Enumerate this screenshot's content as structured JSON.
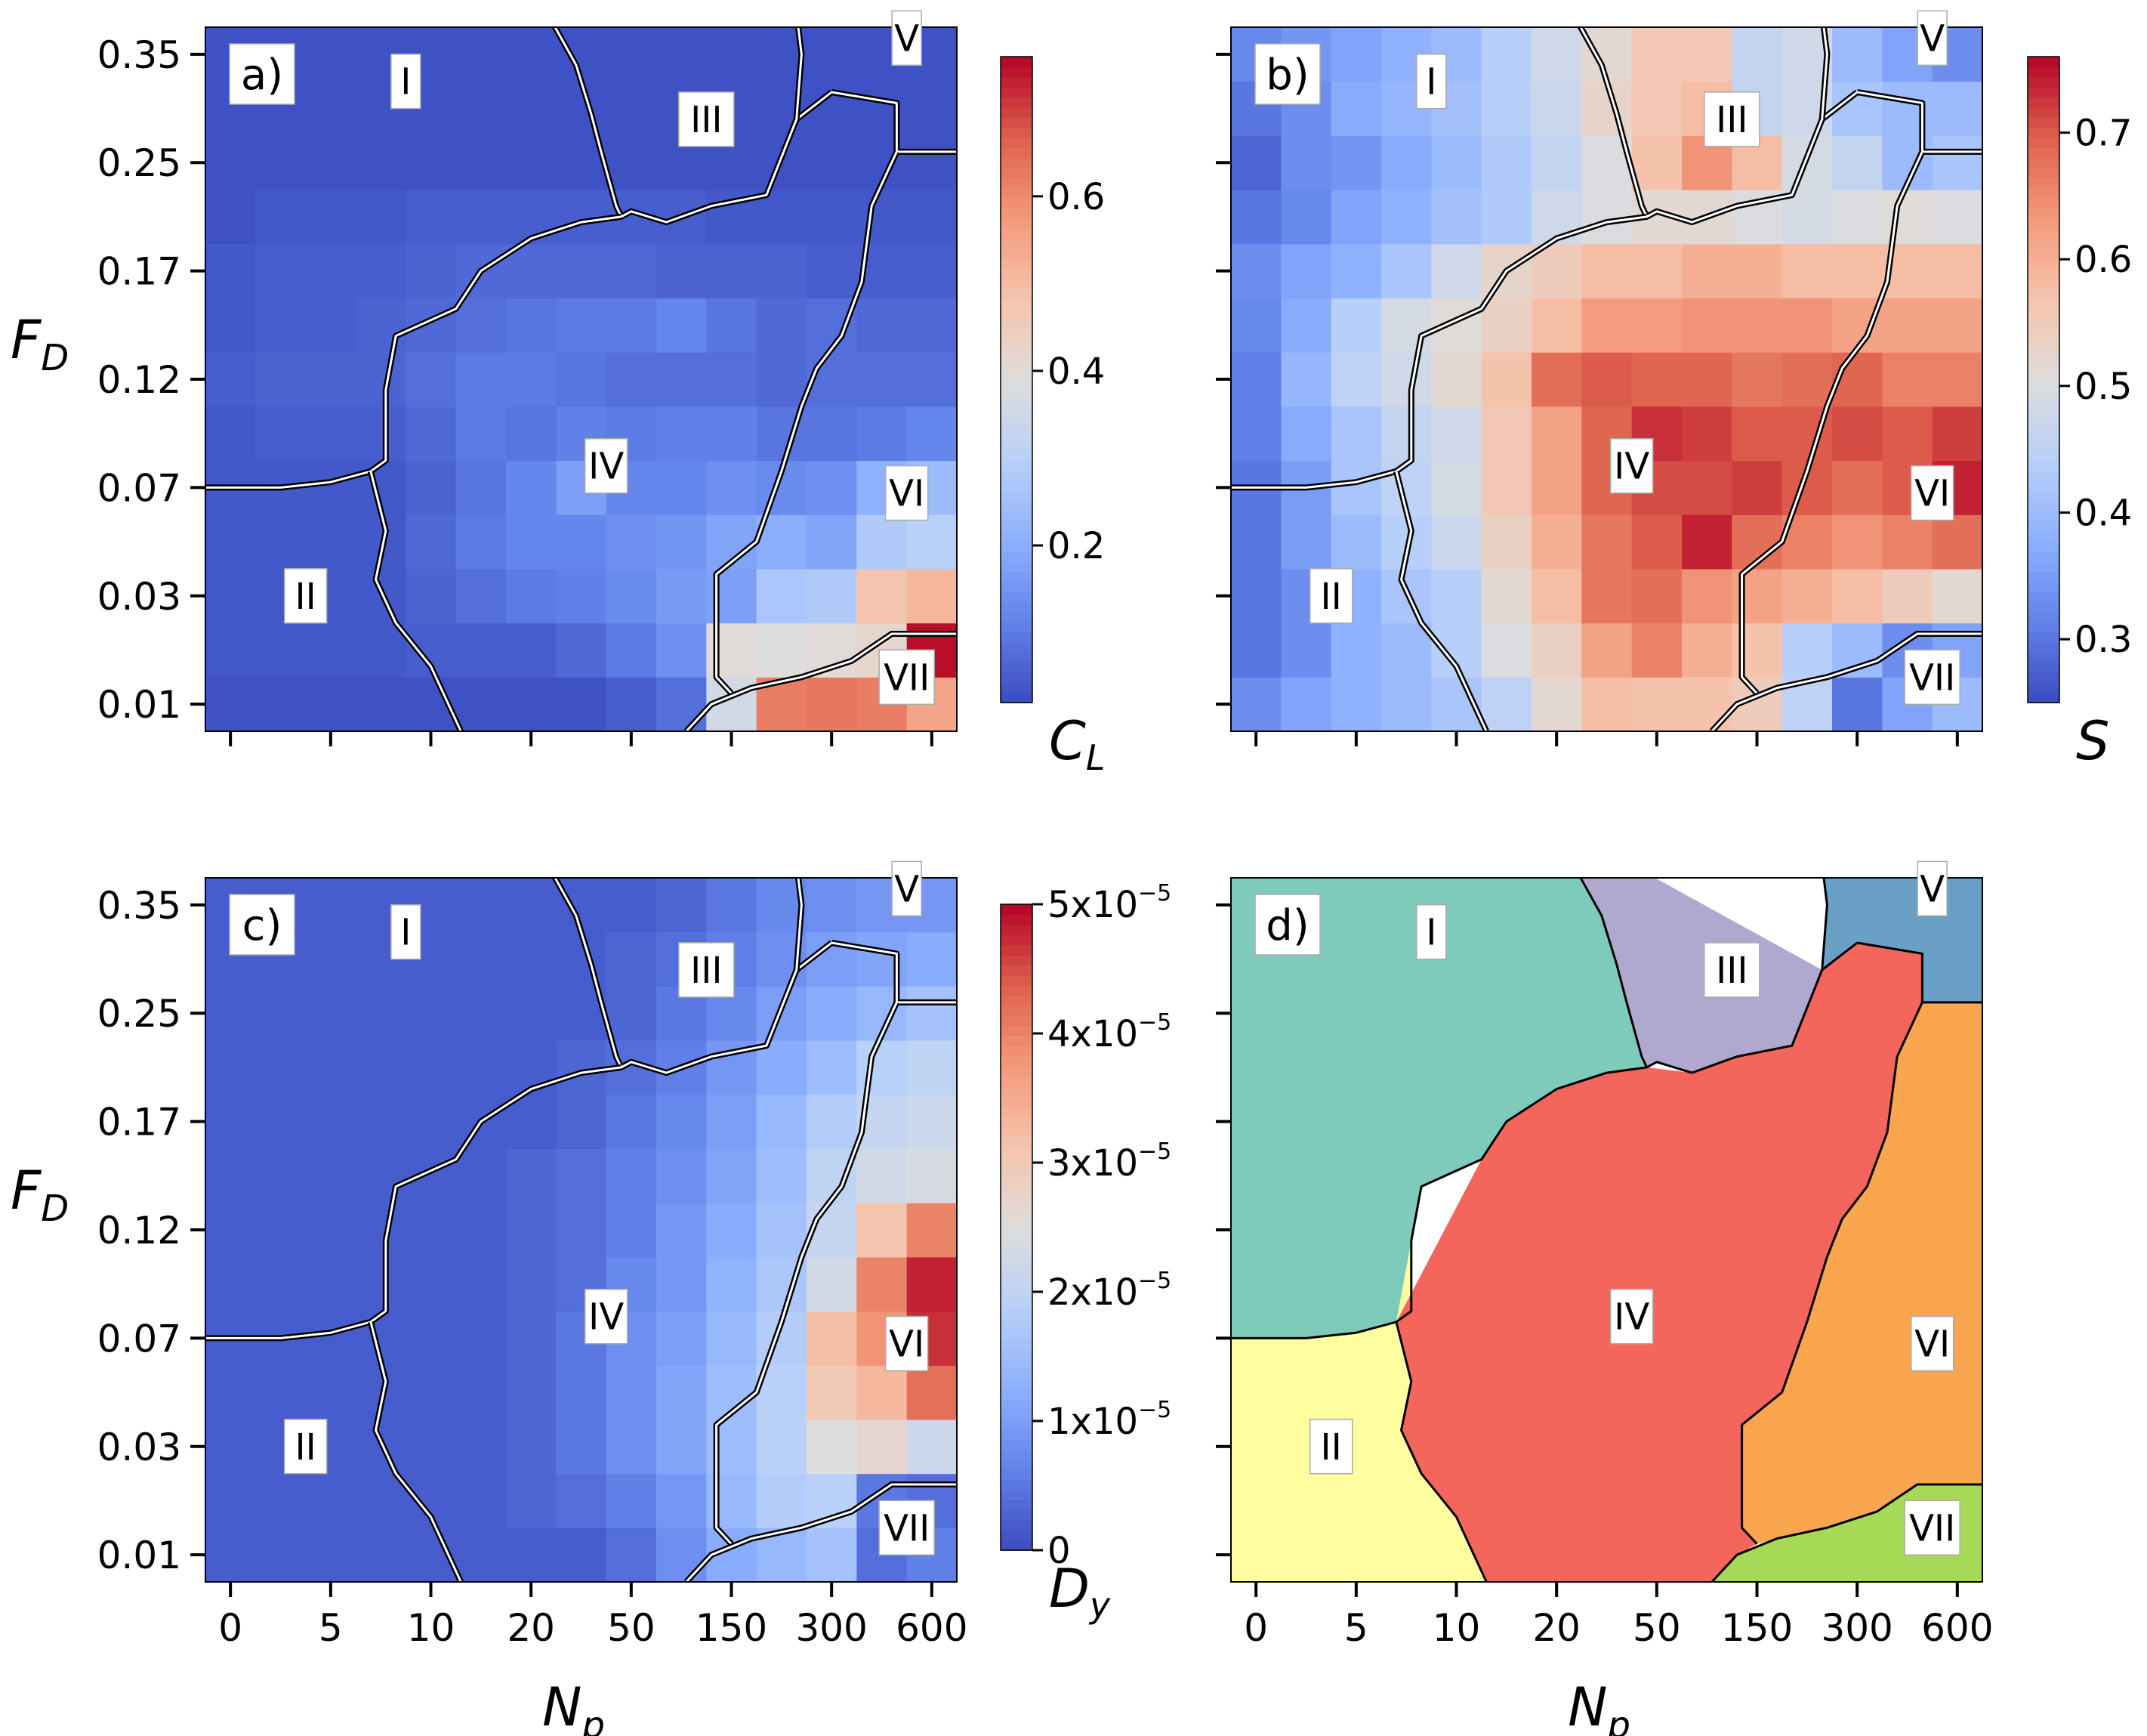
{
  "chart_data": {
    "type": "heatmap",
    "layout": "2x2 grid of phase-diagram panels",
    "x_axis": {
      "label": "N",
      "label_sub": "p",
      "tick_labels": [
        "0",
        "5",
        "10",
        "20",
        "50",
        "150",
        "300",
        "600"
      ],
      "n_cols": 15,
      "tick_cols": [
        0,
        2,
        4,
        6,
        8,
        10,
        12,
        14
      ]
    },
    "y_axis": {
      "label": "F",
      "label_sub": "D",
      "tick_labels": [
        "0.01",
        "0.03",
        "0.07",
        "0.12",
        "0.17",
        "0.25",
        "0.35"
      ],
      "n_rows": 13,
      "tick_rows": [
        0,
        2,
        4,
        6,
        8,
        10,
        12
      ]
    },
    "regions": [
      "I",
      "II",
      "III",
      "IV",
      "V",
      "VI",
      "VII"
    ],
    "region_label_cells": {
      "I": [
        3.5,
        11.5
      ],
      "II": [
        1.5,
        2.0
      ],
      "III": [
        9.5,
        10.8
      ],
      "IV": [
        7.5,
        4.4
      ],
      "V": [
        13.5,
        12.3
      ],
      "VI": [
        13.5,
        3.9
      ],
      "VII": [
        13.5,
        0.5
      ]
    },
    "boundaries": [
      [
        [
          6.0,
          13.5
        ],
        [
          6.3,
          12.8
        ],
        [
          6.9,
          11.8
        ],
        [
          7.2,
          10.9
        ],
        [
          7.4,
          10.2
        ],
        [
          7.7,
          9.2
        ],
        [
          7.8,
          9.0
        ],
        [
          8.0,
          9.1
        ],
        [
          8.7,
          8.9
        ],
        [
          9.6,
          9.2
        ],
        [
          10.7,
          9.4
        ],
        [
          11.3,
          10.8
        ],
        [
          12.0,
          11.3
        ]
      ],
      [
        [
          11.3,
          10.8
        ],
        [
          11.4,
          12.0
        ],
        [
          11.2,
          13.5
        ]
      ],
      [
        [
          12.0,
          11.3
        ],
        [
          13.3,
          11.1
        ],
        [
          13.3,
          10.2
        ],
        [
          14.5,
          10.2
        ]
      ],
      [
        [
          7.8,
          9.0
        ],
        [
          7.0,
          8.9
        ],
        [
          6.0,
          8.6
        ],
        [
          5.0,
          8.0
        ],
        [
          4.5,
          7.3
        ],
        [
          3.3,
          6.8
        ],
        [
          3.1,
          5.8
        ],
        [
          3.1,
          4.5
        ],
        [
          2.8,
          4.3
        ],
        [
          2.0,
          4.1
        ],
        [
          1.0,
          4.0
        ],
        [
          -0.5,
          4.0
        ]
      ],
      [
        [
          2.8,
          4.3
        ],
        [
          3.1,
          3.2
        ],
        [
          2.9,
          2.3
        ],
        [
          3.3,
          1.5
        ],
        [
          4.0,
          0.7
        ],
        [
          4.6,
          -0.5
        ]
      ],
      [
        [
          13.3,
          10.2
        ],
        [
          12.8,
          9.2
        ],
        [
          12.6,
          7.8
        ],
        [
          12.2,
          6.8
        ],
        [
          11.7,
          6.2
        ],
        [
          11.4,
          5.5
        ],
        [
          11.0,
          4.3
        ],
        [
          10.5,
          3.0
        ],
        [
          9.7,
          2.4
        ],
        [
          9.7,
          0.5
        ],
        [
          10.0,
          0.2
        ]
      ],
      [
        [
          9.1,
          -0.5
        ],
        [
          9.6,
          0.0
        ],
        [
          10.4,
          0.3
        ],
        [
          11.4,
          0.5
        ],
        [
          12.4,
          0.8
        ],
        [
          13.2,
          1.3
        ],
        [
          14.5,
          1.3
        ]
      ]
    ],
    "panels": [
      {
        "id": "a",
        "label": "a)",
        "colorbar_label": "C",
        "colorbar_sub": "L",
        "colorbar_range": [
          0.02,
          0.76
        ],
        "colorbar_ticks": [
          "0.2",
          "0.4",
          "0.6"
        ],
        "colorbar_tick_values": [
          0.2,
          0.4,
          0.6
        ],
        "grid": [
          [
            0.03,
            0.03,
            0.03,
            0.03,
            0.03,
            0.03,
            0.03,
            0.03,
            0.05,
            0.08,
            0.36,
            0.62,
            0.63,
            0.62,
            0.55
          ],
          [
            0.04,
            0.04,
            0.04,
            0.04,
            0.05,
            0.05,
            0.05,
            0.07,
            0.1,
            0.14,
            0.4,
            0.39,
            0.4,
            0.42,
            0.75
          ],
          [
            0.04,
            0.04,
            0.04,
            0.04,
            0.06,
            0.08,
            0.1,
            0.11,
            0.13,
            0.16,
            0.17,
            0.27,
            0.28,
            0.48,
            0.51
          ],
          [
            0.04,
            0.04,
            0.04,
            0.04,
            0.07,
            0.1,
            0.12,
            0.12,
            0.14,
            0.15,
            0.18,
            0.2,
            0.18,
            0.28,
            0.3
          ],
          [
            0.04,
            0.04,
            0.04,
            0.04,
            0.06,
            0.09,
            0.12,
            0.17,
            0.12,
            0.12,
            0.14,
            0.13,
            0.14,
            0.21,
            0.24
          ],
          [
            0.04,
            0.05,
            0.05,
            0.05,
            0.07,
            0.1,
            0.09,
            0.11,
            0.1,
            0.11,
            0.11,
            0.09,
            0.09,
            0.1,
            0.12
          ],
          [
            0.05,
            0.06,
            0.06,
            0.06,
            0.08,
            0.1,
            0.1,
            0.09,
            0.08,
            0.08,
            0.08,
            0.07,
            0.08,
            0.08,
            0.08
          ],
          [
            0.04,
            0.05,
            0.05,
            0.06,
            0.07,
            0.08,
            0.09,
            0.1,
            0.1,
            0.12,
            0.09,
            0.07,
            0.08,
            0.07,
            0.07
          ],
          [
            0.04,
            0.05,
            0.05,
            0.05,
            0.06,
            0.07,
            0.07,
            0.07,
            0.07,
            0.06,
            0.06,
            0.06,
            0.05,
            0.05,
            0.05
          ],
          [
            0.03,
            0.04,
            0.04,
            0.04,
            0.05,
            0.05,
            0.05,
            0.05,
            0.05,
            0.05,
            0.04,
            0.04,
            0.04,
            0.04,
            0.04
          ],
          [
            0.03,
            0.03,
            0.03,
            0.03,
            0.03,
            0.03,
            0.03,
            0.03,
            0.03,
            0.03,
            0.03,
            0.03,
            0.03,
            0.03,
            0.03
          ],
          [
            0.03,
            0.03,
            0.03,
            0.03,
            0.03,
            0.03,
            0.03,
            0.03,
            0.03,
            0.03,
            0.03,
            0.03,
            0.03,
            0.03,
            0.03
          ],
          [
            0.03,
            0.03,
            0.03,
            0.03,
            0.03,
            0.03,
            0.03,
            0.03,
            0.03,
            0.03,
            0.03,
            0.03,
            0.03,
            0.03,
            0.03
          ]
        ]
      },
      {
        "id": "b",
        "label": "b)",
        "colorbar_label": "S",
        "colorbar_sub": "",
        "colorbar_range": [
          0.25,
          0.76
        ],
        "colorbar_ticks": [
          "0.3",
          "0.4",
          "0.5",
          "0.6",
          "0.7"
        ],
        "colorbar_tick_values": [
          0.3,
          0.4,
          0.5,
          0.6,
          0.7
        ],
        "grid": [
          [
            0.33,
            0.36,
            0.38,
            0.4,
            0.42,
            0.45,
            0.52,
            0.58,
            0.57,
            0.57,
            0.55,
            0.45,
            0.3,
            0.36,
            0.4
          ],
          [
            0.3,
            0.33,
            0.38,
            0.4,
            0.44,
            0.5,
            0.54,
            0.62,
            0.66,
            0.6,
            0.57,
            0.44,
            0.4,
            0.33,
            0.36
          ],
          [
            0.3,
            0.33,
            0.38,
            0.42,
            0.44,
            0.52,
            0.58,
            0.67,
            0.68,
            0.64,
            0.62,
            0.6,
            0.58,
            0.55,
            0.52
          ],
          [
            0.3,
            0.35,
            0.4,
            0.44,
            0.47,
            0.54,
            0.6,
            0.67,
            0.7,
            0.74,
            0.68,
            0.66,
            0.64,
            0.66,
            0.68
          ],
          [
            0.3,
            0.35,
            0.42,
            0.45,
            0.49,
            0.56,
            0.62,
            0.69,
            0.71,
            0.71,
            0.72,
            0.7,
            0.68,
            0.7,
            0.74
          ],
          [
            0.31,
            0.37,
            0.42,
            0.46,
            0.48,
            0.56,
            0.62,
            0.69,
            0.73,
            0.72,
            0.7,
            0.7,
            0.71,
            0.7,
            0.72
          ],
          [
            0.31,
            0.39,
            0.45,
            0.48,
            0.52,
            0.57,
            0.68,
            0.7,
            0.69,
            0.69,
            0.67,
            0.68,
            0.69,
            0.66,
            0.66
          ],
          [
            0.32,
            0.37,
            0.44,
            0.49,
            0.51,
            0.54,
            0.58,
            0.63,
            0.63,
            0.64,
            0.64,
            0.64,
            0.62,
            0.62,
            0.62
          ],
          [
            0.33,
            0.36,
            0.38,
            0.42,
            0.48,
            0.53,
            0.55,
            0.58,
            0.58,
            0.6,
            0.6,
            0.58,
            0.58,
            0.58,
            0.58
          ],
          [
            0.3,
            0.32,
            0.36,
            0.38,
            0.41,
            0.43,
            0.48,
            0.5,
            0.52,
            0.52,
            0.5,
            0.49,
            0.5,
            0.51,
            0.5
          ],
          [
            0.28,
            0.33,
            0.34,
            0.37,
            0.4,
            0.43,
            0.46,
            0.5,
            0.57,
            0.64,
            0.58,
            0.49,
            0.46,
            0.4,
            0.42
          ],
          [
            0.3,
            0.33,
            0.37,
            0.39,
            0.41,
            0.44,
            0.47,
            0.53,
            0.56,
            0.58,
            0.46,
            0.48,
            0.42,
            0.4,
            0.4
          ],
          [
            0.32,
            0.34,
            0.36,
            0.38,
            0.4,
            0.44,
            0.48,
            0.52,
            0.56,
            0.56,
            0.46,
            0.48,
            0.4,
            0.36,
            0.33
          ]
        ]
      },
      {
        "id": "c",
        "label": "c)",
        "colorbar_label": "D",
        "colorbar_sub": "y",
        "colorbar_range": [
          0,
          5
        ],
        "colorbar_ticks": [
          "0",
          "1x10",
          "2x10",
          "3x10",
          "4x10",
          "5x10"
        ],
        "colorbar_tick_exp": [
          "",
          "−5",
          "−5",
          "−5",
          "−5",
          "−5"
        ],
        "colorbar_tick_values": [
          0,
          1,
          2,
          3,
          4,
          5
        ],
        "grid": [
          [
            0.2,
            0.2,
            0.2,
            0.2,
            0.2,
            0.2,
            0.2,
            0.2,
            0.4,
            0.8,
            1.2,
            1.4,
            1.6,
            0.4,
            0.6
          ],
          [
            0.2,
            0.2,
            0.2,
            0.2,
            0.2,
            0.2,
            0.3,
            0.4,
            0.6,
            0.9,
            1.4,
            1.8,
            1.9,
            0.5,
            0.4
          ],
          [
            0.2,
            0.2,
            0.2,
            0.2,
            0.2,
            0.2,
            0.3,
            0.5,
            0.8,
            1.1,
            1.5,
            1.9,
            2.5,
            2.7,
            2.2
          ],
          [
            0.2,
            0.2,
            0.2,
            0.2,
            0.2,
            0.2,
            0.3,
            0.5,
            0.8,
            1.1,
            1.5,
            1.9,
            3.0,
            3.3,
            4.2
          ],
          [
            0.2,
            0.2,
            0.2,
            0.2,
            0.2,
            0.2,
            0.3,
            0.5,
            0.8,
            1.0,
            1.4,
            1.8,
            3.2,
            3.8,
            4.7
          ],
          [
            0.2,
            0.2,
            0.2,
            0.2,
            0.2,
            0.2,
            0.3,
            0.4,
            0.7,
            0.9,
            1.3,
            1.7,
            2.3,
            4.0,
            4.8
          ],
          [
            0.2,
            0.2,
            0.2,
            0.2,
            0.2,
            0.2,
            0.3,
            0.4,
            0.6,
            0.9,
            1.2,
            1.6,
            2.1,
            3.1,
            4.0
          ],
          [
            0.2,
            0.2,
            0.2,
            0.2,
            0.2,
            0.2,
            0.3,
            0.4,
            0.6,
            0.8,
            1.1,
            1.5,
            2.0,
            2.3,
            2.4
          ],
          [
            0.2,
            0.2,
            0.2,
            0.2,
            0.2,
            0.2,
            0.2,
            0.3,
            0.5,
            0.7,
            1.0,
            1.4,
            1.8,
            2.1,
            2.2
          ],
          [
            0.2,
            0.2,
            0.2,
            0.2,
            0.2,
            0.2,
            0.2,
            0.3,
            0.4,
            0.6,
            0.9,
            1.2,
            1.5,
            1.9,
            2.0
          ],
          [
            0.2,
            0.2,
            0.2,
            0.2,
            0.2,
            0.2,
            0.2,
            0.2,
            0.3,
            0.5,
            0.7,
            1.0,
            1.2,
            1.4,
            1.6
          ],
          [
            0.2,
            0.2,
            0.2,
            0.2,
            0.2,
            0.2,
            0.2,
            0.2,
            0.3,
            0.4,
            0.6,
            0.8,
            1.0,
            1.1,
            1.2
          ],
          [
            0.2,
            0.2,
            0.2,
            0.2,
            0.2,
            0.2,
            0.2,
            0.2,
            0.2,
            0.3,
            0.5,
            0.7,
            0.8,
            0.9,
            0.9
          ]
        ]
      },
      {
        "id": "d",
        "label": "d)",
        "region_colors": {
          "I": "#7fcbbb",
          "II": "#ffff9f",
          "III": "#b0a8cf",
          "IV": "#f4655b",
          "V": "#6a9fc6",
          "VI": "#f9a64f",
          "VII": "#a6d955"
        }
      }
    ]
  }
}
